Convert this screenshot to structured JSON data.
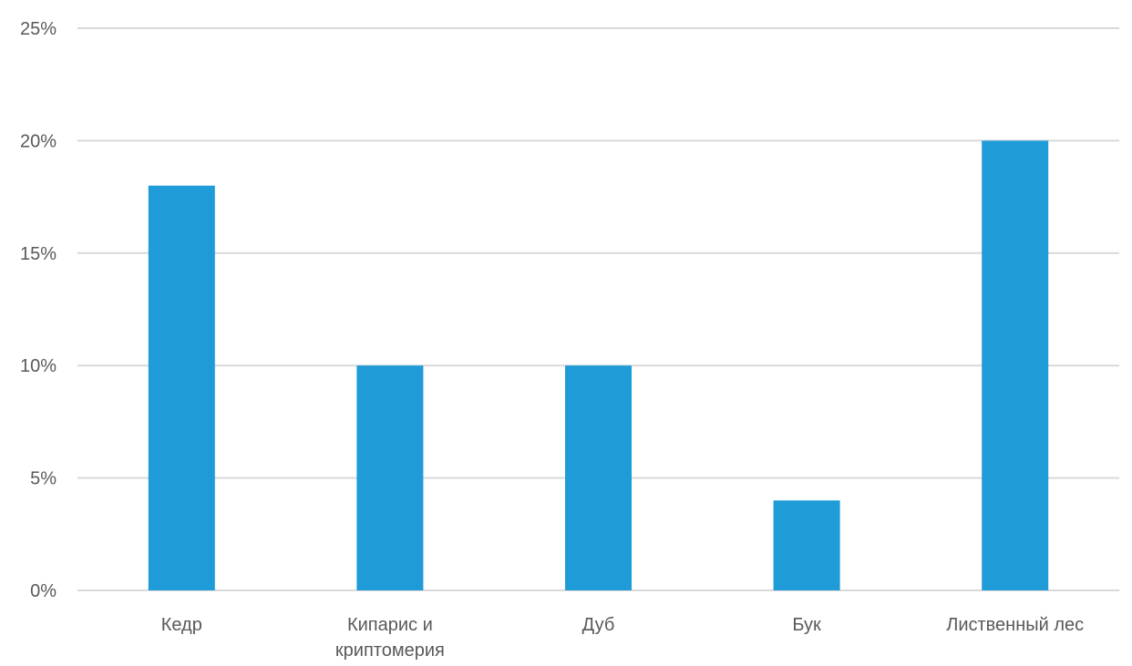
{
  "chart_data": {
    "type": "bar",
    "categories": [
      "Кедр",
      "Кипарис и криптомерия",
      "Дуб",
      "Бук",
      "Лиственный лес"
    ],
    "category_label_lines": [
      [
        "Кедр"
      ],
      [
        "Кипарис и",
        "криптомерия"
      ],
      [
        "Дуб"
      ],
      [
        "Бук"
      ],
      [
        "Лиственный лес"
      ]
    ],
    "values": [
      18,
      10,
      10,
      4,
      20
    ],
    "ylim": [
      0,
      25
    ],
    "yticks": [
      0,
      5,
      10,
      15,
      20,
      25
    ],
    "ytick_labels": [
      "0%",
      "5%",
      "10%",
      "15%",
      "20%",
      "25%"
    ],
    "title": "",
    "xlabel": "",
    "ylabel": "",
    "grid": true,
    "legend": "none",
    "colors": {
      "bar": "#1f9bd7",
      "grid": "#d9d9d9",
      "text": "#595959"
    }
  }
}
